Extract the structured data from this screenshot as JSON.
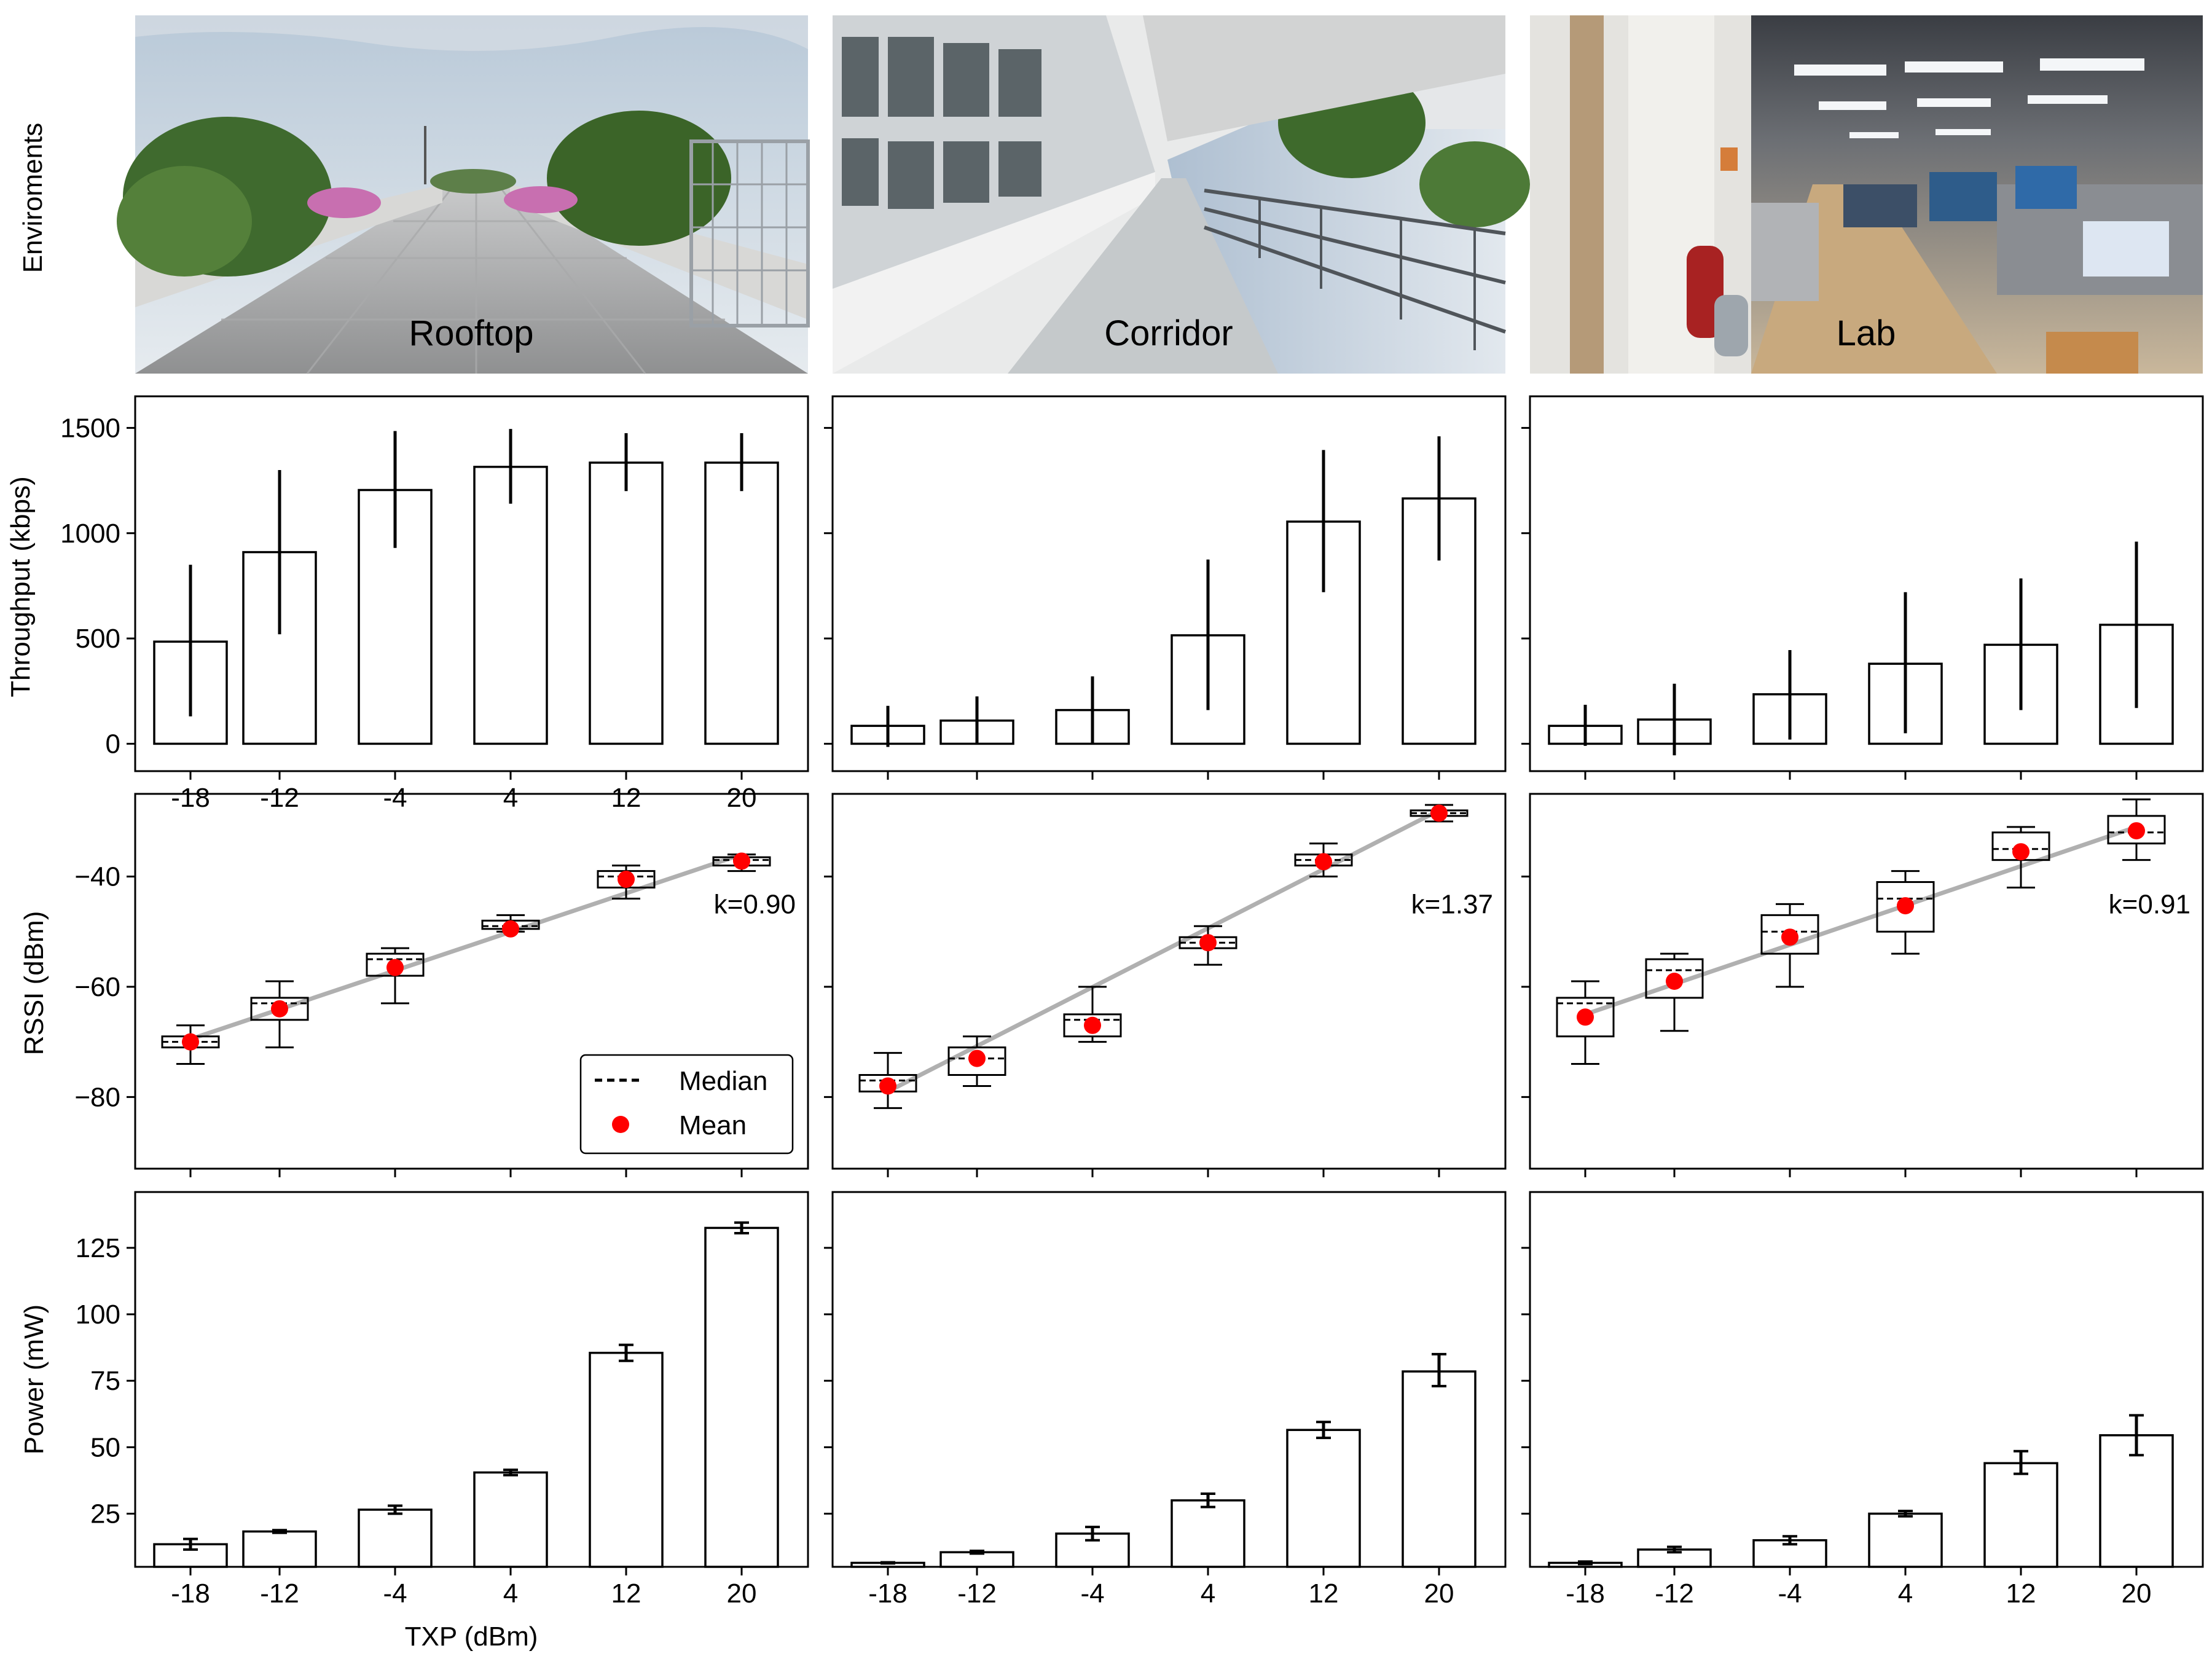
{
  "row_labels": {
    "environments": "Enviroments",
    "throughput": "Throughput (kbps)",
    "rssi": "RSSI (dBm)",
    "power": "Power (mW)"
  },
  "xlabel": "TXP (dBm)",
  "legend": {
    "median": "Median",
    "mean": "Mean",
    "placement": "lower-right of Rooftop RSSI panel"
  },
  "colors": {
    "mean": "#ff0000",
    "fit_line": "#b0b0b0",
    "box": "#000000"
  },
  "panels": [
    {
      "name": "Rooftop",
      "slope_label": "k=0.90",
      "photo": "rooftop walkway with shrubs, pink flowers and cloudy sky"
    },
    {
      "name": "Corridor",
      "slope_label": "k=1.37",
      "photo": "outdoor building corridor with railing and palm trees"
    },
    {
      "name": "Lab",
      "slope_label": "k=0.91",
      "photo": "indoor office lab with desks, monitors and fire extinguisher"
    }
  ],
  "chart_data": [
    {
      "type": "bar",
      "row": "throughput",
      "panel": "Rooftop",
      "x": [
        -18,
        -12,
        -4,
        4,
        12,
        20
      ],
      "tick_labels": [
        "-18",
        "-12",
        "-4",
        "4",
        "12",
        "20"
      ],
      "values": [
        485,
        910,
        1205,
        1315,
        1335,
        1335
      ],
      "err_low": [
        130,
        520,
        930,
        1140,
        1200,
        1200
      ],
      "err_high": [
        850,
        1300,
        1485,
        1495,
        1475,
        1475
      ],
      "ylabel": "Throughput (kbps)",
      "ylim": [
        -130,
        1650
      ],
      "yticks": [
        0,
        500,
        1000,
        1500
      ],
      "grid": false
    },
    {
      "type": "bar",
      "row": "throughput",
      "panel": "Corridor",
      "x": [
        -18,
        -12,
        -4,
        4,
        12,
        20
      ],
      "values": [
        85,
        110,
        160,
        515,
        1055,
        1165
      ],
      "err_low": [
        -15,
        0,
        0,
        160,
        720,
        870
      ],
      "err_high": [
        180,
        225,
        320,
        875,
        1395,
        1460
      ],
      "ylim": [
        -130,
        1650
      ],
      "grid": false
    },
    {
      "type": "bar",
      "row": "throughput",
      "panel": "Lab",
      "x": [
        -18,
        -12,
        -4,
        4,
        12,
        20
      ],
      "values": [
        85,
        115,
        235,
        380,
        470,
        565
      ],
      "err_low": [
        -10,
        -55,
        20,
        50,
        160,
        170
      ],
      "err_high": [
        185,
        285,
        445,
        720,
        785,
        960
      ],
      "ylim": [
        -130,
        1650
      ],
      "grid": false
    },
    {
      "type": "box",
      "row": "rssi",
      "panel": "Rooftop",
      "x": [
        -18,
        -12,
        -4,
        4,
        12,
        20
      ],
      "whisker_low": [
        -74,
        -71,
        -63,
        -50,
        -44,
        -39
      ],
      "q1": [
        -71,
        -66,
        -58,
        -49.5,
        -42,
        -38
      ],
      "median": [
        -70,
        -63,
        -55,
        -49,
        -40,
        -37
      ],
      "q3": [
        -69,
        -62,
        -54,
        -48,
        -39,
        -36.5
      ],
      "whisker_high": [
        -67,
        -59,
        -53,
        -47,
        -38,
        -36
      ],
      "mean": [
        -70,
        -64,
        -56.5,
        -49.5,
        -40.5,
        -37.2
      ],
      "fit_line": {
        "x": [
          -18,
          20
        ],
        "y": [
          -69.5,
          -36
        ]
      },
      "slope_label": "k=0.90",
      "ylabel": "RSSI (dBm)",
      "ylim": [
        -93,
        -25
      ],
      "yticks": [
        -80,
        -60,
        -40
      ],
      "grid": false
    },
    {
      "type": "box",
      "row": "rssi",
      "panel": "Corridor",
      "x": [
        -18,
        -12,
        -4,
        4,
        12,
        20
      ],
      "whisker_low": [
        -82,
        -78,
        -70,
        -56,
        -40,
        -30
      ],
      "q1": [
        -79,
        -76,
        -69,
        -53,
        -38,
        -29
      ],
      "median": [
        -77,
        -73,
        -66,
        -52,
        -37,
        -28.5
      ],
      "q3": [
        -76,
        -71,
        -65,
        -51,
        -36,
        -28
      ],
      "whisker_high": [
        -72,
        -69,
        -60,
        -49,
        -34,
        -27
      ],
      "mean": [
        -78,
        -73,
        -67,
        -52,
        -37.3,
        -28.5
      ],
      "fit_line": {
        "x": [
          -18,
          20
        ],
        "y": [
          -79,
          -28
        ]
      },
      "slope_label": "k=1.37",
      "ylim": [
        -93,
        -25
      ],
      "grid": false
    },
    {
      "type": "box",
      "row": "rssi",
      "panel": "Lab",
      "x": [
        -18,
        -12,
        -4,
        4,
        12,
        20
      ],
      "whisker_low": [
        -74,
        -68,
        -60,
        -54,
        -42,
        -37
      ],
      "q1": [
        -69,
        -62,
        -54,
        -50,
        -37,
        -34
      ],
      "median": [
        -63,
        -57,
        -50,
        -44,
        -35,
        -32
      ],
      "q3": [
        -62,
        -55,
        -47,
        -41,
        -32,
        -29
      ],
      "whisker_high": [
        -59,
        -54,
        -45,
        -39,
        -31,
        -26
      ],
      "mean": [
        -65.5,
        -59,
        -51,
        -45.3,
        -35.5,
        -31.7
      ],
      "fit_line": {
        "x": [
          -18,
          20
        ],
        "y": [
          -65,
          -31
        ]
      },
      "slope_label": "k=0.91",
      "ylim": [
        -93,
        -25
      ],
      "grid": false
    },
    {
      "type": "bar",
      "row": "power",
      "panel": "Rooftop",
      "x": [
        -18,
        -12,
        -4,
        4,
        12,
        20
      ],
      "tick_labels": [
        "-18",
        "-12",
        "-4",
        "4",
        "12",
        "20"
      ],
      "values": [
        13.5,
        18.3,
        26.5,
        40.5,
        85.5,
        132.5
      ],
      "err_low": [
        11.5,
        17.8,
        25,
        39.5,
        82.5,
        130.5
      ],
      "err_high": [
        15.5,
        18.8,
        28,
        41.5,
        88.5,
        134.5
      ],
      "ylabel": "Power (mW)",
      "ylim": [
        5,
        146
      ],
      "yticks": [
        25,
        50,
        75,
        100,
        125
      ],
      "grid": false
    },
    {
      "type": "bar",
      "row": "power",
      "panel": "Corridor",
      "x": [
        -18,
        -12,
        -4,
        4,
        12,
        20
      ],
      "tick_labels": [
        "-18",
        "-12",
        "-4",
        "4",
        "12",
        "20"
      ],
      "values": [
        6.5,
        10.5,
        17.5,
        30,
        56.5,
        78.5
      ],
      "err_low": [
        6.3,
        10,
        15,
        27.5,
        53.5,
        73
      ],
      "err_high": [
        6.7,
        11,
        20,
        32.5,
        59.5,
        85
      ],
      "ylim": [
        5,
        146
      ],
      "grid": false
    },
    {
      "type": "bar",
      "row": "power",
      "panel": "Lab",
      "x": [
        -18,
        -12,
        -4,
        4,
        12,
        20
      ],
      "tick_labels": [
        "-18",
        "-12",
        "-4",
        "4",
        "12",
        "20"
      ],
      "values": [
        6.5,
        11.5,
        15,
        25,
        44,
        54.5
      ],
      "err_low": [
        6,
        10.5,
        13.5,
        24,
        40,
        47
      ],
      "err_high": [
        7,
        12.5,
        16.5,
        26,
        48.5,
        62
      ],
      "ylim": [
        5,
        146
      ],
      "grid": false
    }
  ]
}
